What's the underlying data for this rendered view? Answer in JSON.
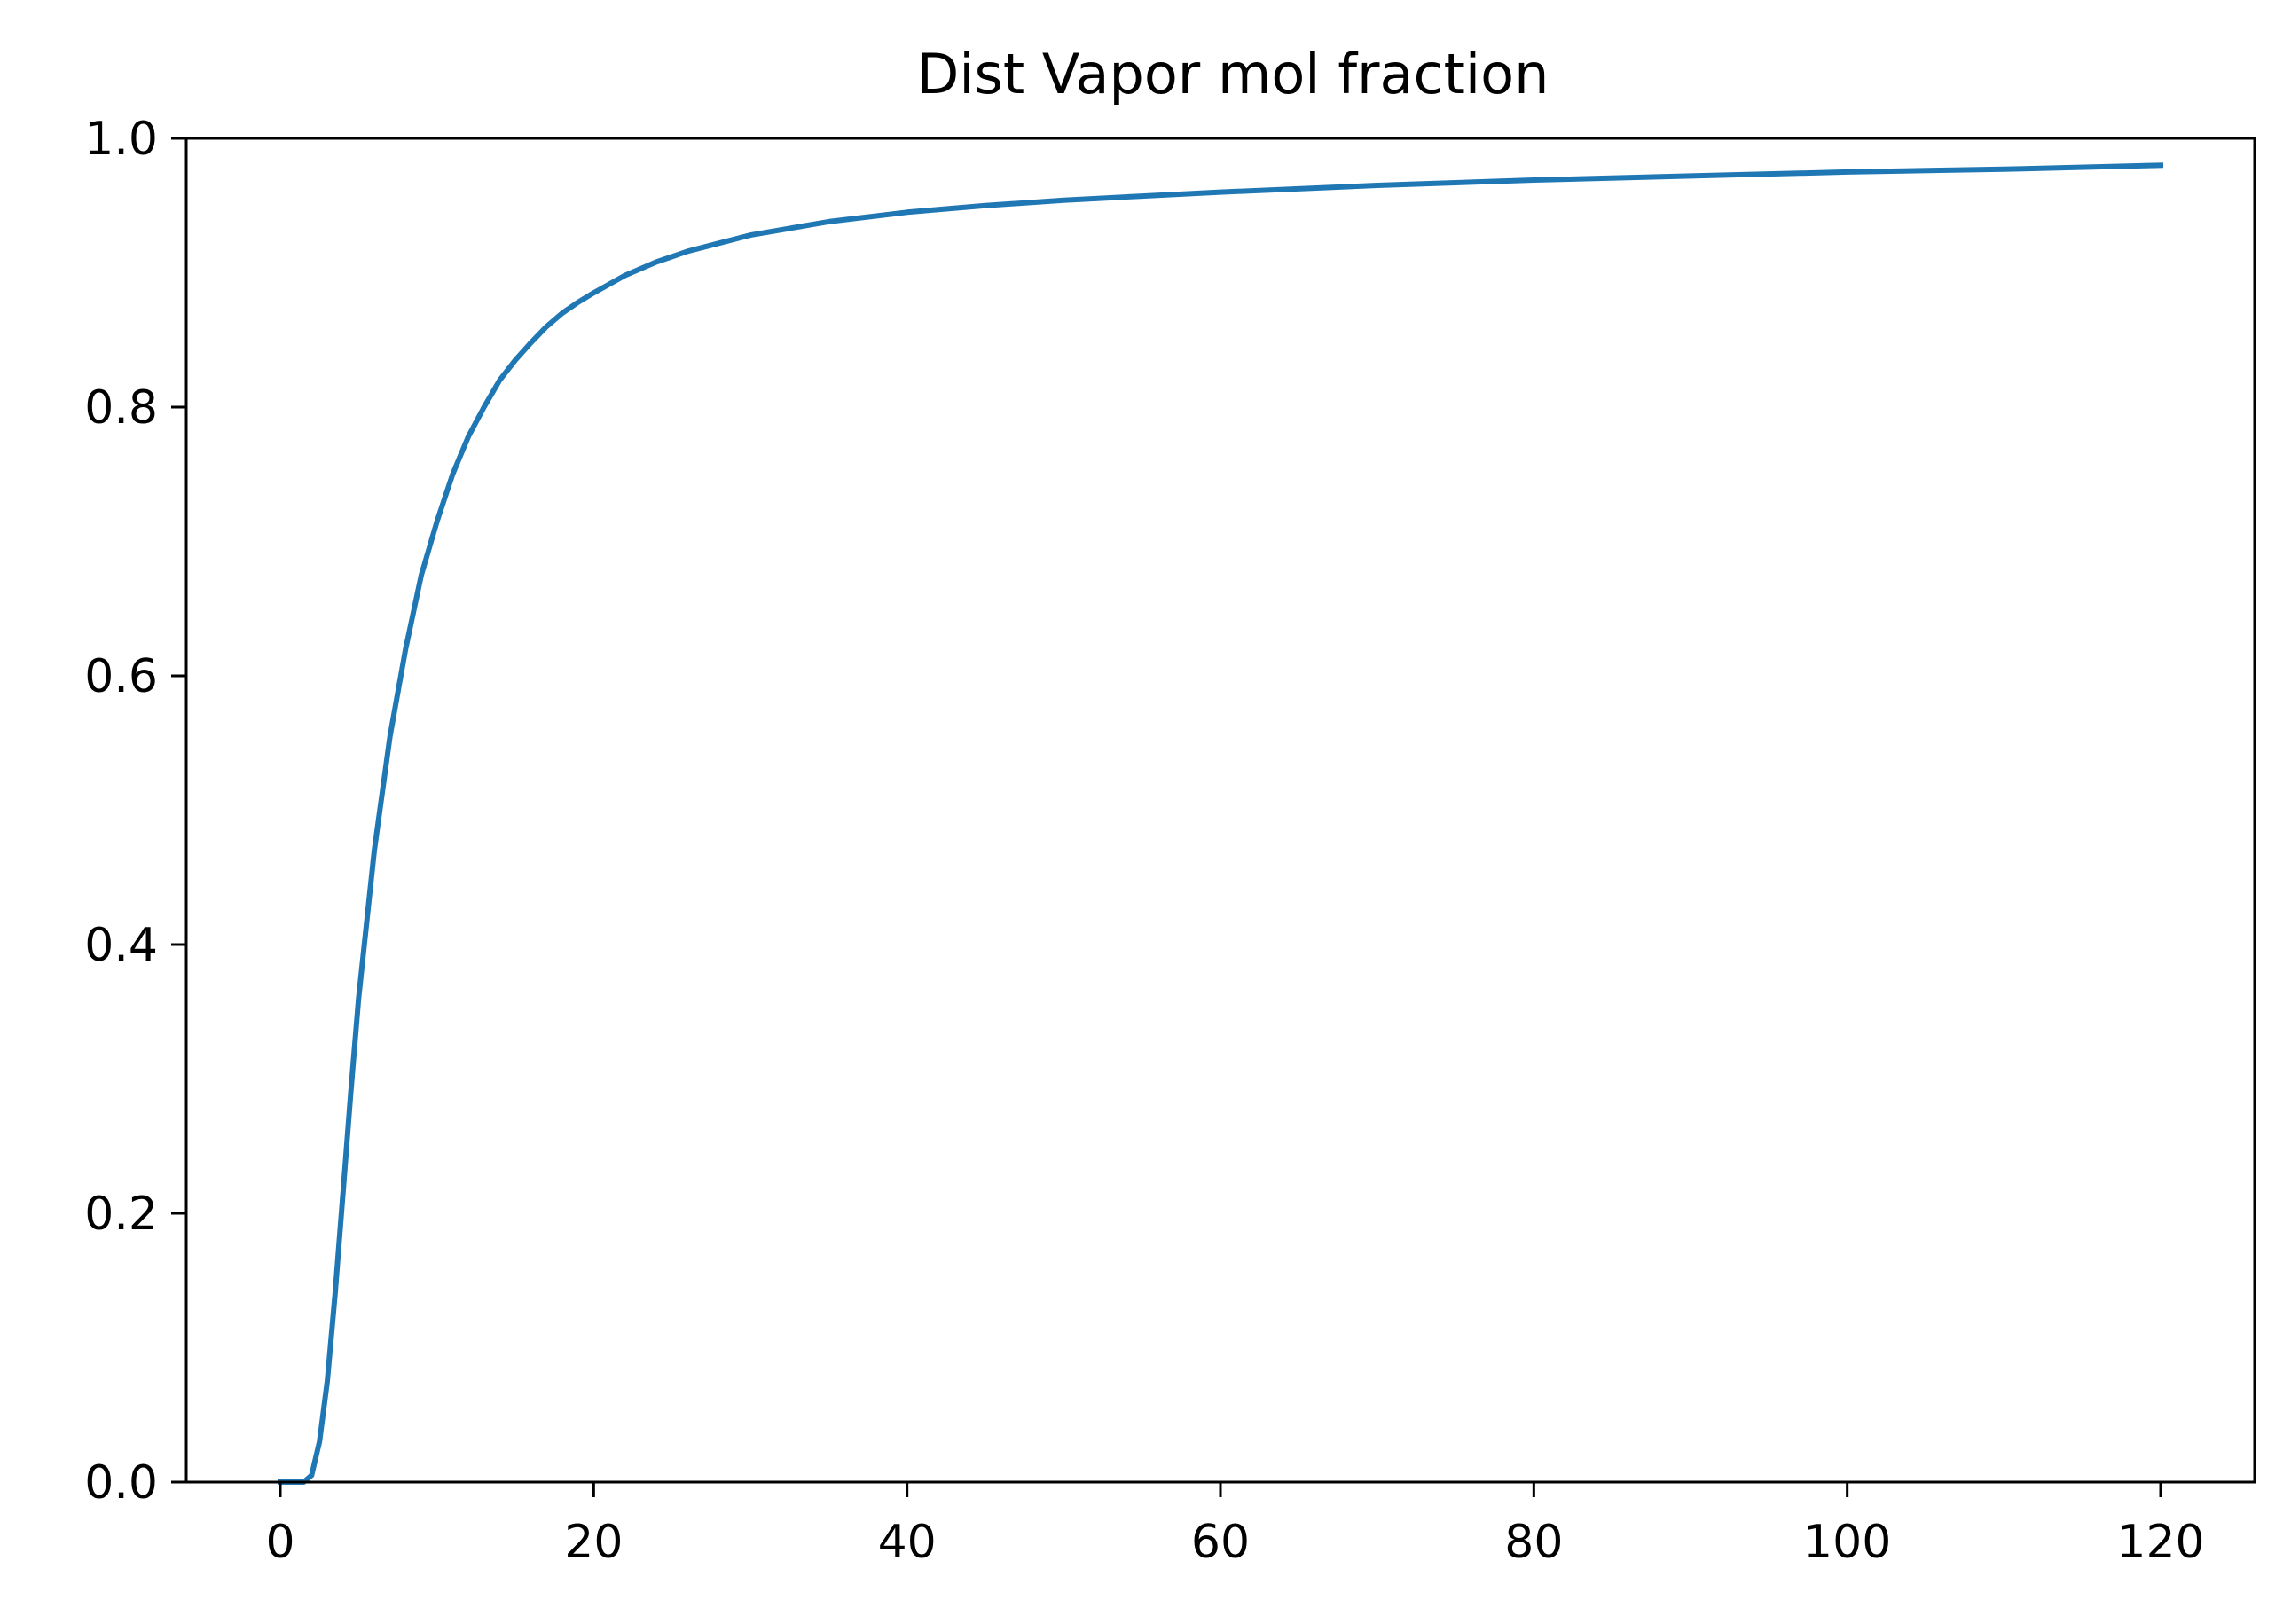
{
  "chart_data": {
    "type": "line",
    "title": "Dist Vapor mol fraction",
    "xlabel": "",
    "ylabel": "",
    "xlim": [
      -6,
      126
    ],
    "ylim": [
      0,
      1.0
    ],
    "xticks": [
      0,
      20,
      40,
      60,
      80,
      100,
      120
    ],
    "xtick_labels": [
      "0",
      "20",
      "40",
      "60",
      "80",
      "100",
      "120"
    ],
    "yticks": [
      0.0,
      0.2,
      0.4,
      0.6,
      0.8,
      1.0
    ],
    "ytick_labels": [
      "0.0",
      "0.2",
      "0.4",
      "0.6",
      "0.8",
      "1.0"
    ],
    "grid": false,
    "series": [
      {
        "color": "#1f77b4",
        "x": [
          0,
          1,
          1.5,
          2,
          2.5,
          3,
          3.5,
          4,
          4.5,
          5,
          6,
          7,
          8,
          9,
          10,
          11,
          12,
          13,
          14,
          15,
          16,
          17,
          18,
          19,
          20,
          22,
          24,
          26,
          28,
          30,
          35,
          40,
          45,
          50,
          55,
          60,
          70,
          80,
          90,
          100,
          110,
          120
        ],
        "y": [
          0.0,
          0.0,
          0.0,
          0.005,
          0.03,
          0.075,
          0.14,
          0.215,
          0.29,
          0.36,
          0.47,
          0.555,
          0.62,
          0.675,
          0.715,
          0.75,
          0.778,
          0.8,
          0.82,
          0.835,
          0.848,
          0.86,
          0.87,
          0.878,
          0.885,
          0.898,
          0.908,
          0.916,
          0.922,
          0.928,
          0.938,
          0.945,
          0.95,
          0.954,
          0.957,
          0.96,
          0.965,
          0.969,
          0.972,
          0.975,
          0.977,
          0.98
        ]
      }
    ]
  }
}
